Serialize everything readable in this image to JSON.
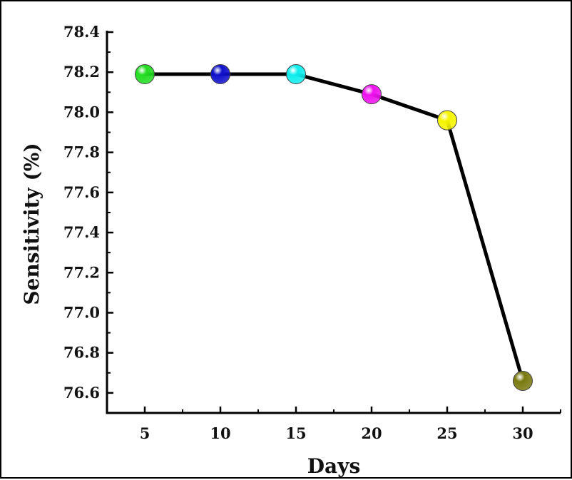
{
  "chart_data": {
    "type": "line",
    "title": "",
    "xlabel": "Days",
    "ylabel": "Sensitivity (%)",
    "x": [
      5,
      10,
      15,
      20,
      25,
      30
    ],
    "series": [
      {
        "values": [
          78.19,
          78.19,
          78.19,
          78.09,
          77.96,
          76.66
        ],
        "line_color": "#000000",
        "marker_colors": [
          "#22dd22",
          "#1010cc",
          "#11eeee",
          "#ee11ee",
          "#f5f500",
          "#7a7a10"
        ]
      }
    ],
    "xlim": [
      2.5,
      32.5
    ],
    "ylim": [
      76.5,
      78.4
    ],
    "x_ticks": [
      "5",
      "10",
      "15",
      "20",
      "25",
      "30"
    ],
    "y_ticks": [
      "76.6",
      "76.8",
      "77.0",
      "77.2",
      "77.4",
      "77.6",
      "77.8",
      "78.0",
      "78.2",
      "78.4"
    ],
    "grid": false,
    "legend": "none"
  }
}
